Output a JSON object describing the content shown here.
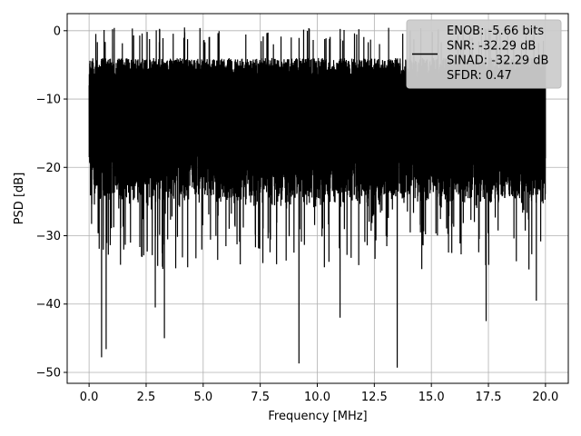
{
  "colors": {
    "line": "#000000",
    "grid": "#b0b0b0",
    "axis": "#000000",
    "background": "#ffffff",
    "legend_bg": "#cccccc"
  },
  "chart_data": {
    "type": "line",
    "title": "",
    "xlabel": "Frequency [MHz]",
    "ylabel": "PSD [dB]",
    "xlim": [
      -0.96,
      21.0
    ],
    "ylim": [
      -51.6,
      2.5
    ],
    "xticks": [
      0.0,
      2.5,
      5.0,
      7.5,
      10.0,
      12.5,
      15.0,
      17.5,
      20.0
    ],
    "xtick_labels": [
      "0.0",
      "2.5",
      "5.0",
      "7.5",
      "10.0",
      "12.5",
      "15.0",
      "17.5",
      "20.0"
    ],
    "yticks": [
      0,
      -10,
      -20,
      -30,
      -40,
      -50
    ],
    "ytick_labels": [
      "0",
      "−10",
      "−20",
      "−30",
      "−40",
      "−50"
    ],
    "grid": true,
    "legend_position": "top-right",
    "legend": {
      "lines": [
        "ENOB: -5.66 bits",
        "SNR: -32.29 dB",
        "SINAD: -32.29 dB",
        "SFDR: 0.47"
      ]
    },
    "series": [
      {
        "x_range": [
          0.0,
          20.0
        ],
        "typical_range": [
          -26,
          -4
        ],
        "max": -2.0,
        "min": -49.3,
        "dips": [
          {
            "x": 0.55,
            "y": -47.8
          },
          {
            "x": 0.75,
            "y": -46.6
          },
          {
            "x": 3.3,
            "y": -45.0
          },
          {
            "x": 2.9,
            "y": -40.5
          },
          {
            "x": 9.2,
            "y": -48.7
          },
          {
            "x": 11.0,
            "y": -42.0
          },
          {
            "x": 13.5,
            "y": -49.3
          },
          {
            "x": 17.4,
            "y": -42.5
          },
          {
            "x": 19.6,
            "y": -39.5
          }
        ]
      }
    ]
  }
}
